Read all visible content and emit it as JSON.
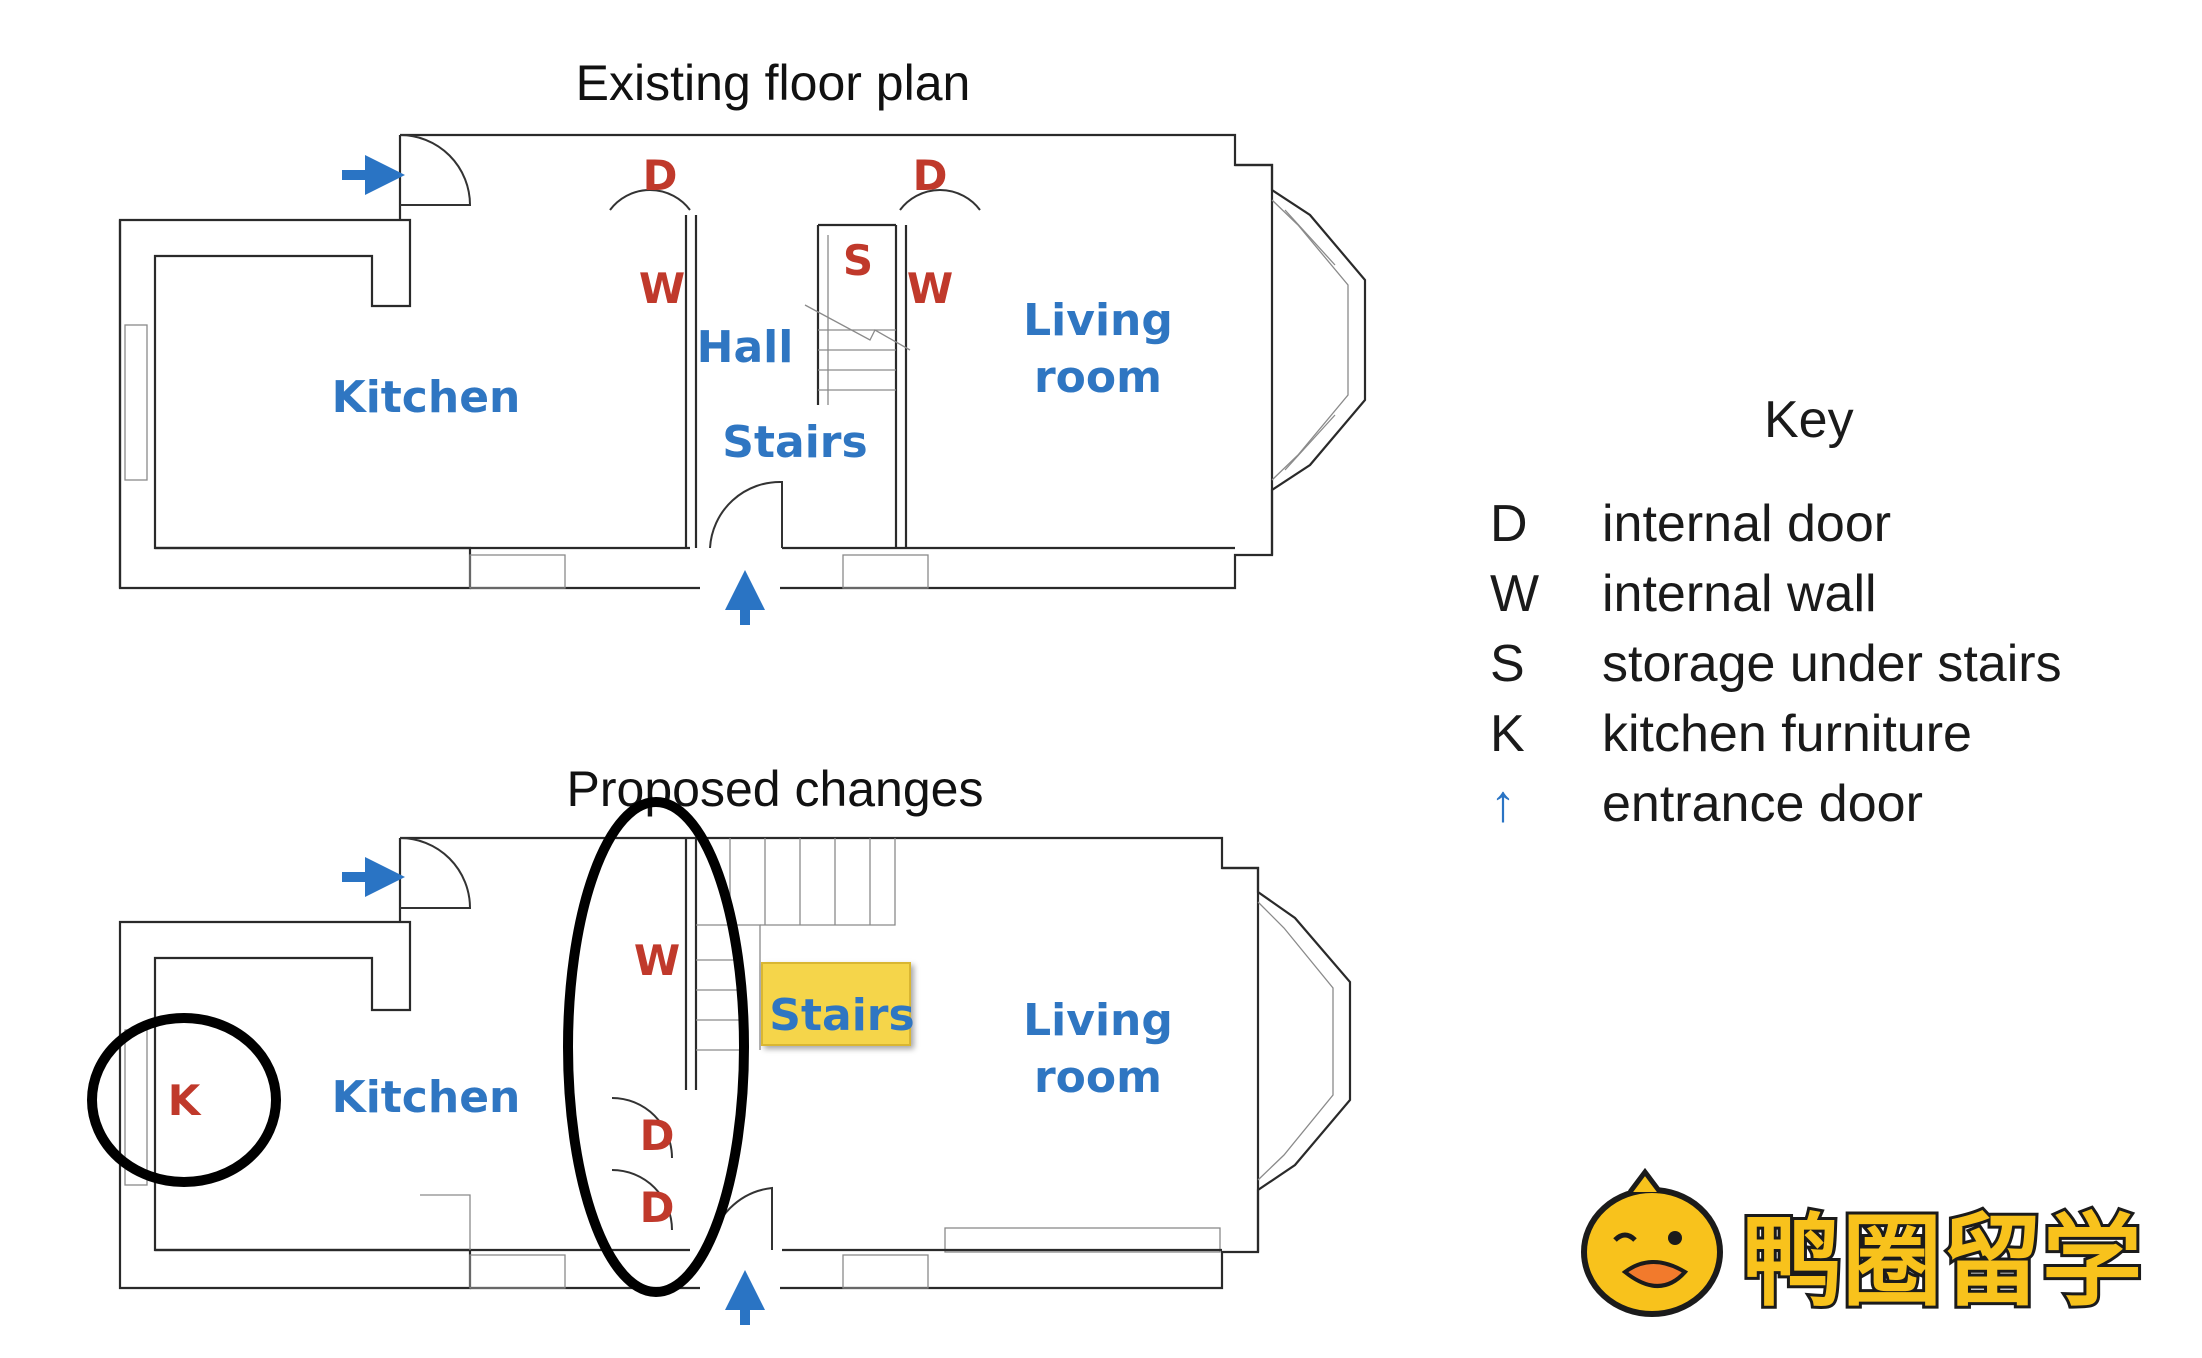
{
  "existing": {
    "title": "Existing floor plan",
    "rooms": {
      "kitchen": "Kitchen",
      "hall": "Hall",
      "stairs": "Stairs",
      "living_1": "Living",
      "living_2": "room"
    },
    "codes": {
      "door_left": "D",
      "door_right": "D",
      "wall_left": "W",
      "wall_right": "W",
      "storage": "S"
    }
  },
  "proposed": {
    "title": "Proposed changes",
    "rooms": {
      "kitchen": "Kitchen",
      "stairs": "Stairs",
      "living_1": "Living",
      "living_2": "room"
    },
    "codes": {
      "wall": "W",
      "door_1": "D",
      "door_2": "D",
      "kitchen_furniture": "K"
    }
  },
  "key": {
    "title": "Key",
    "items": [
      {
        "symbol": "D",
        "label": "internal door"
      },
      {
        "symbol": "W",
        "label": "internal wall"
      },
      {
        "symbol": "S",
        "label": "storage under stairs"
      },
      {
        "symbol": "K",
        "label": "kitchen furniture"
      },
      {
        "symbol": "↑",
        "label": "entrance door"
      }
    ]
  },
  "watermark": {
    "text": "鸭圈留学"
  },
  "colors": {
    "room_label": "#2f76c2",
    "code_label": "#c0392b",
    "arrow": "#2a74c4",
    "highlight": "#f5d54a"
  }
}
